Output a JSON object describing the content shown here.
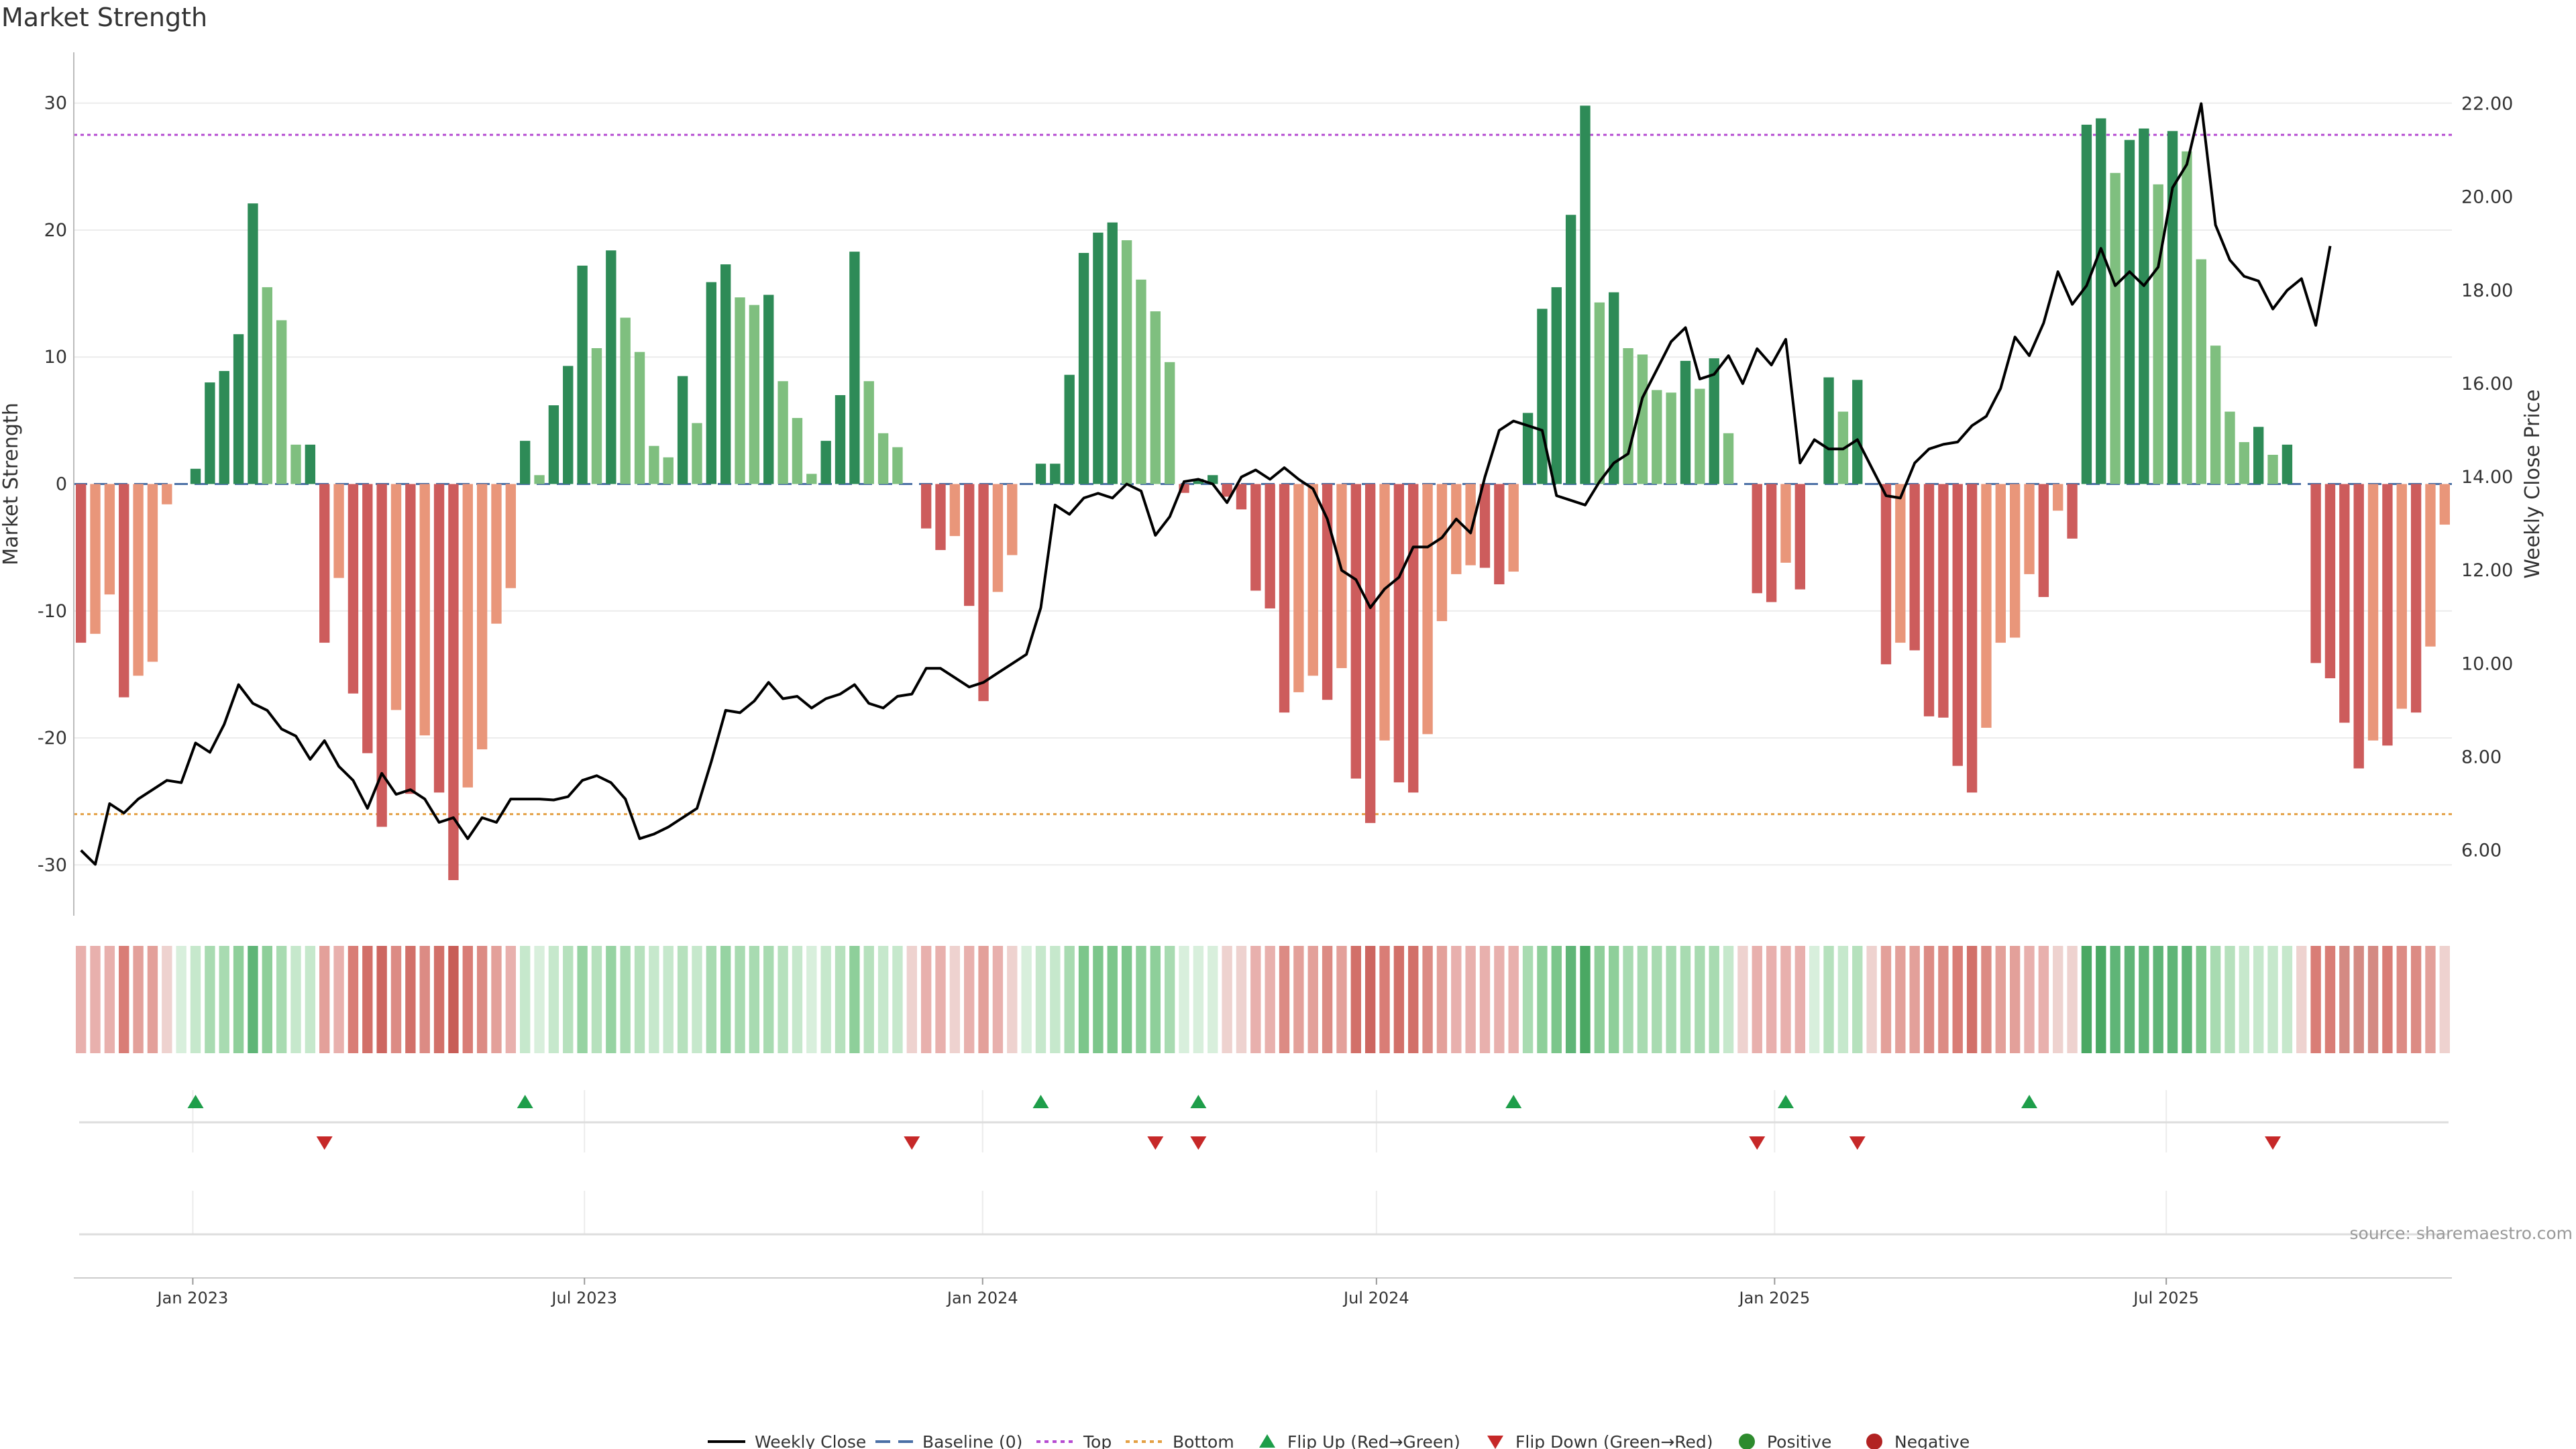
{
  "chart_data": {
    "type": "bar",
    "title": "Market Strength",
    "ylabel": "Market Strength",
    "y2label": "Weekly Close Price",
    "ylim": [
      -34,
      34
    ],
    "y2lim": [
      4.6,
      23.1
    ],
    "y_ticks": [
      30,
      20,
      10,
      0,
      -10,
      -20,
      -30
    ],
    "y2_ticks": [
      "22.00",
      "20.00",
      "18.00",
      "16.00",
      "14.00",
      "12.00",
      "10.00",
      "8.00",
      "6.00"
    ],
    "x_range": [
      "2022-11-07",
      "2025-11-10"
    ],
    "x_ticks": [
      {
        "date": "2023-01-01",
        "label": "Jan 2023"
      },
      {
        "date": "2023-07-01",
        "label": "Jul 2023"
      },
      {
        "date": "2024-01-01",
        "label": "Jan 2024"
      },
      {
        "date": "2024-07-01",
        "label": "Jul 2024"
      },
      {
        "date": "2025-01-01",
        "label": "Jan 2025"
      },
      {
        "date": "2025-07-01",
        "label": "Jul 2025"
      }
    ],
    "top_level": 27.5,
    "bottom_level": -26.0,
    "baseline": 0,
    "bars": [
      -12.5,
      -11.8,
      -8.7,
      -16.8,
      -15.1,
      -14.0,
      -1.6,
      0.0,
      1.2,
      8.0,
      8.9,
      11.8,
      22.1,
      15.5,
      12.9,
      3.1,
      3.1,
      -12.5,
      -7.4,
      -16.5,
      -21.2,
      -27.0,
      -17.8,
      -24.4,
      -19.8,
      -24.3,
      -31.2,
      -23.9,
      -20.9,
      -11.0,
      -8.2,
      3.4,
      0.7,
      6.2,
      9.3,
      17.2,
      10.7,
      18.4,
      13.1,
      10.4,
      3.0,
      2.1,
      8.5,
      4.8,
      15.9,
      17.3,
      14.7,
      14.1,
      14.9,
      8.1,
      5.2,
      0.8,
      3.4,
      7.0,
      18.3,
      8.1,
      4.0,
      2.9,
      0.0,
      -3.5,
      -5.2,
      -4.1,
      -9.6,
      -17.1,
      -8.5,
      -5.6,
      0.0,
      1.6,
      1.6,
      8.6,
      18.2,
      19.8,
      20.6,
      19.2,
      16.1,
      13.6,
      9.6,
      -0.7,
      0.4,
      0.7,
      -1.0,
      -2.0,
      -8.4,
      -9.8,
      -18.0,
      -16.4,
      -15.1,
      -17.0,
      -14.5,
      -23.2,
      -26.7,
      -20.2,
      -23.5,
      -24.3,
      -19.7,
      -10.8,
      -7.1,
      -6.4,
      -6.6,
      -7.9,
      -6.9,
      5.6,
      13.8,
      15.5,
      21.2,
      29.8,
      14.3,
      15.1,
      10.7,
      10.2,
      7.4,
      7.2,
      9.7,
      7.5,
      9.9,
      4.0,
      0.0,
      -8.6,
      -9.3,
      -6.2,
      -8.3,
      0.0,
      8.4,
      5.7,
      8.2,
      0.0,
      -14.2,
      -12.5,
      -13.1,
      -18.3,
      -18.4,
      -22.2,
      -24.3,
      -19.2,
      -12.5,
      -12.1,
      -7.1,
      -8.9,
      -2.1,
      -4.3,
      28.3,
      28.8,
      24.5,
      27.1,
      28.0,
      23.6,
      27.8,
      26.2,
      17.7,
      10.9,
      5.7,
      3.3,
      4.5,
      2.3,
      3.1,
      0.0,
      -14.1,
      -15.3,
      -18.8,
      -22.4,
      -20.2,
      -20.6,
      -17.7,
      -18.0,
      -12.8,
      -3.2
    ],
    "close": [
      6.0,
      5.7,
      7.0,
      6.8,
      7.1,
      7.3,
      7.5,
      7.45,
      8.3,
      8.1,
      8.7,
      9.55,
      9.15,
      9.0,
      8.6,
      8.45,
      7.95,
      8.35,
      7.8,
      7.5,
      6.9,
      7.65,
      7.2,
      7.3,
      7.1,
      6.6,
      6.7,
      6.25,
      6.7,
      6.6,
      7.1,
      7.1,
      7.1,
      7.08,
      7.15,
      7.5,
      7.6,
      7.45,
      7.1,
      6.25,
      6.35,
      6.5,
      6.7,
      6.9,
      7.9,
      9.0,
      8.95,
      9.2,
      9.6,
      9.25,
      9.3,
      9.05,
      9.25,
      9.35,
      9.55,
      9.15,
      9.05,
      9.3,
      9.35,
      9.9,
      9.9,
      9.7,
      9.5,
      9.6,
      9.8,
      10.0,
      10.2,
      11.2,
      13.4,
      13.2,
      13.55,
      13.65,
      13.55,
      13.85,
      13.7,
      12.75,
      13.15,
      13.9,
      13.95,
      13.85,
      13.45,
      14.0,
      14.15,
      13.95,
      14.2,
      13.95,
      13.75,
      13.1,
      12.0,
      11.8,
      11.2,
      11.6,
      11.85,
      12.5,
      12.5,
      12.7,
      13.1,
      12.8,
      14.0,
      15.0,
      15.2,
      15.1,
      15.0,
      13.6,
      13.5,
      13.4,
      13.9,
      14.3,
      14.5,
      15.7,
      16.3,
      16.9,
      17.2,
      16.1,
      16.2,
      16.6,
      16.0,
      16.75,
      16.4,
      16.95,
      14.3,
      14.8,
      14.6,
      14.6,
      14.8,
      14.2,
      13.6,
      13.55,
      14.3,
      14.6,
      14.7,
      14.75,
      15.1,
      15.3,
      15.9,
      17.0,
      16.6,
      17.3,
      18.4,
      17.7,
      18.1,
      18.9,
      18.1,
      18.4,
      18.1,
      18.5,
      20.2,
      20.7,
      22.0,
      19.4,
      18.65,
      18.3,
      18.2,
      17.6,
      18.0,
      18.25,
      17.25,
      18.95
    ],
    "strip_colors": [
      "#e8b0ad",
      "#e8b0ad",
      "#e8b0ad",
      "#d97d76",
      "#e3a09a",
      "#e3a09a",
      "#eed2cf",
      "#d8efdc",
      "#c6e8cc",
      "#a8dbb1",
      "#a8dbb1",
      "#8ecf9a",
      "#5fb577",
      "#8ecf9a",
      "#a8dbb1",
      "#c6e8cc",
      "#c6e8cc",
      "#e3a09a",
      "#e8b0ad",
      "#d97d76",
      "#d27069",
      "#cd6660",
      "#dc8b84",
      "#d27069",
      "#dc8b84",
      "#d27069",
      "#c85d57",
      "#d97d76",
      "#dc8b84",
      "#e3a09a",
      "#e8b0ad",
      "#c6e8cc",
      "#d8efdc",
      "#c6e8cc",
      "#b6e1bd",
      "#96d3a2",
      "#b6e1bd",
      "#96d3a2",
      "#a8dbb1",
      "#b6e1bd",
      "#c6e8cc",
      "#c6e8cc",
      "#b6e1bd",
      "#c6e8cc",
      "#a8dbb1",
      "#96d3a2",
      "#a8dbb1",
      "#a8dbb1",
      "#a8dbb1",
      "#b6e1bd",
      "#c6e8cc",
      "#d8efdc",
      "#c6e8cc",
      "#b6e1bd",
      "#8ecf9a",
      "#b6e1bd",
      "#c6e8cc",
      "#c6e8cc",
      "#eed2cf",
      "#e8b0ad",
      "#e8b0ad",
      "#eed2cf",
      "#e8b0ad",
      "#e3a09a",
      "#e8b0ad",
      "#eed2cf",
      "#d8efdc",
      "#c6e8cc",
      "#c6e8cc",
      "#a8dbb1",
      "#7cc68b",
      "#7cc68b",
      "#7cc68b",
      "#7cc68b",
      "#8ecf9a",
      "#8ecf9a",
      "#a8dbb1",
      "#d8efdc",
      "#d8efdc",
      "#d8efdc",
      "#eed2cf",
      "#eed2cf",
      "#e8b0ad",
      "#e8b0ad",
      "#dc8b84",
      "#e3a09a",
      "#e3a09a",
      "#dc8b84",
      "#e3a09a",
      "#d27069",
      "#cd6660",
      "#d97d76",
      "#d27069",
      "#d27069",
      "#dc8b84",
      "#e3a09a",
      "#e8b0ad",
      "#e8b0ad",
      "#e8b0ad",
      "#e8b0ad",
      "#e8b0ad",
      "#a8dbb1",
      "#8ecf9a",
      "#7cc68b",
      "#5fb577",
      "#4aa863",
      "#8ecf9a",
      "#8ecf9a",
      "#a8dbb1",
      "#a8dbb1",
      "#a8dbb1",
      "#a8dbb1",
      "#a8dbb1",
      "#a8dbb1",
      "#a8dbb1",
      "#c6e8cc",
      "#eed2cf",
      "#e8b0ad",
      "#e8b0ad",
      "#e8b0ad",
      "#e8b0ad",
      "#d8efdc",
      "#b6e1bd",
      "#c6e8cc",
      "#b6e1bd",
      "#eed2cf",
      "#e3a09a",
      "#e3a09a",
      "#e3a09a",
      "#dc8b84",
      "#dc8b84",
      "#d97d76",
      "#d27069",
      "#dc8b84",
      "#e3a09a",
      "#e3a09a",
      "#e8b0ad",
      "#e8b0ad",
      "#eed2cf",
      "#eed2cf",
      "#4aa863",
      "#4aa863",
      "#5fb577",
      "#5fb577",
      "#5fb577",
      "#5fb577",
      "#5fb577",
      "#5fb577",
      "#7cc68b",
      "#a8dbb1",
      "#b6e1bd",
      "#c6e8cc",
      "#c6e8cc",
      "#c6e8cc",
      "#c6e8cc",
      "#eed2cf",
      "#d97d76",
      "#d97d76",
      "#d48a83",
      "#d48a83",
      "#d48a83",
      "#d97d76",
      "#dc8b84",
      "#dc8b84",
      "#e3a09a",
      "#eed2cf"
    ],
    "flip_up_weeks": [
      8,
      31,
      67,
      78,
      100,
      119,
      136
    ],
    "flip_down_weeks": [
      17,
      58,
      75,
      78,
      117,
      124,
      153
    ]
  },
  "colors": {
    "pos_dark": "#2e8b57",
    "pos_light": "#7fbf7f",
    "neg_dark": "#cd5c5c",
    "neg_light": "#e9967a",
    "price_line": "#000000",
    "baseline": "#4a6fa5",
    "top": "#b54bd1",
    "bottom": "#e3a044",
    "flip_up": "#1e9e4a",
    "flip_down": "#c62828",
    "positive": "#2e8b2e",
    "negative": "#b22222"
  },
  "legend": {
    "weekly_close": "Weekly Close",
    "baseline": "Baseline (0)",
    "top": "Top",
    "bottom": "Bottom",
    "flip_up": "Flip Up (Red→Green)",
    "flip_down": "Flip Down (Green→Red)",
    "positive": "Positive",
    "negative": "Negative"
  },
  "source": "source: sharemaestro.com"
}
